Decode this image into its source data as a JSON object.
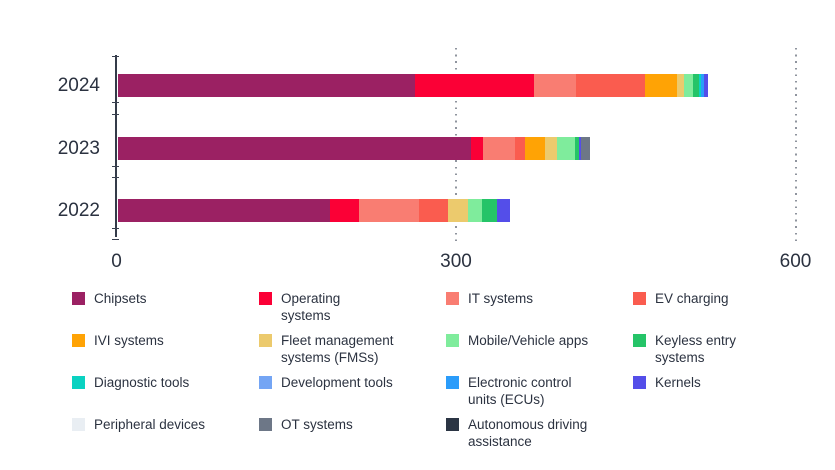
{
  "style": {
    "background": "#ffffff",
    "text_color": "#2b3240",
    "axis_color": "#343b49",
    "grid_color": "#8f949e"
  },
  "chart_data": {
    "type": "bar",
    "orientation": "horizontal-stacked",
    "title": "",
    "xlabel": "",
    "ylabel": "",
    "xlim": [
      0,
      600
    ],
    "x_ticks": [
      0,
      300,
      600
    ],
    "x_tick_labels": [
      "0",
      "300",
      "600"
    ],
    "grid": "dotted-vertical",
    "legend_position": "bottom",
    "categories": [
      "2024",
      "2023",
      "2022"
    ],
    "series": [
      {
        "name": "Chipsets",
        "legend_label": "Chipsets",
        "color": "#9b2163",
        "values": [
          263,
          312,
          188
        ]
      },
      {
        "name": "Operating systems",
        "legend_label": "Operating\nsystems",
        "color": "#fb0036",
        "values": [
          105,
          11,
          25
        ]
      },
      {
        "name": "IT systems",
        "legend_label": "IT systems",
        "color": "#f97d72",
        "values": [
          37,
          28,
          53
        ]
      },
      {
        "name": "EV charging",
        "legend_label": "EV charging",
        "color": "#fa5c4f",
        "values": [
          61,
          9,
          26
        ]
      },
      {
        "name": "IVI systems",
        "legend_label": "IVI systems",
        "color": "#ffa305",
        "values": [
          28,
          18,
          0
        ]
      },
      {
        "name": "Fleet management systems (FMSs)",
        "legend_label": "Fleet management\nsystems (FMSs)",
        "color": "#ecca6d",
        "values": [
          7,
          10,
          18
        ]
      },
      {
        "name": "Mobile/Vehicle apps",
        "legend_label": "Mobile/Vehicle apps",
        "color": "#7fec9c",
        "values": [
          8,
          16,
          12
        ]
      },
      {
        "name": "Keyless entry systems",
        "legend_label": "Keyless entry\nsystems",
        "color": "#25c468",
        "values": [
          5,
          4,
          13
        ]
      },
      {
        "name": "Diagnostic tools",
        "legend_label": "Diagnostic tools",
        "color": "#0ad2c1",
        "values": [
          2,
          0,
          0
        ]
      },
      {
        "name": "Development tools",
        "legend_label": "Development tools",
        "color": "#74a5f4",
        "values": [
          0,
          0,
          0
        ]
      },
      {
        "name": "Electronic control units (ECUs)",
        "legend_label": "Electronic control\nunits (ECUs)",
        "color": "#2b9cfa",
        "values": [
          2,
          0,
          0
        ]
      },
      {
        "name": "Kernels",
        "legend_label": "Kernels",
        "color": "#544ee9",
        "values": [
          4,
          2,
          12
        ]
      },
      {
        "name": "Peripheral devices",
        "legend_label": "Peripheral devices",
        "color": "#e9eef3",
        "values": [
          0,
          0,
          0
        ]
      },
      {
        "name": "OT systems",
        "legend_label": "OT systems",
        "color": "#6d7787",
        "values": [
          0,
          8,
          0
        ]
      },
      {
        "name": "Autonomous driving assistance",
        "legend_label": "Autonomous driving\nassistance",
        "color": "#2b3544",
        "values": [
          0,
          0,
          0
        ]
      }
    ]
  }
}
